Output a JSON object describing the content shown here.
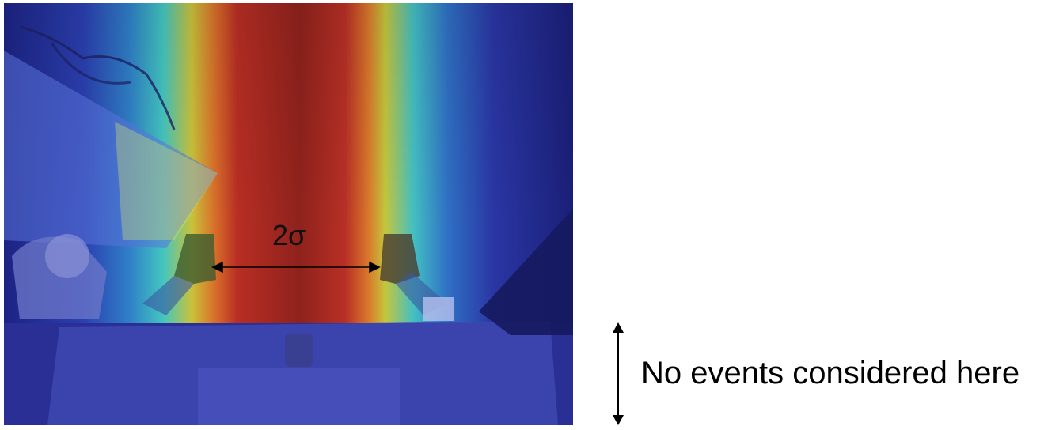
{
  "figure": {
    "sigma_label": "2σ",
    "no_events_label": "No events considered here"
  },
  "colors": {
    "heatmap_peak": "#8b1a1a",
    "heatmap_low": "#1a1f80",
    "arrow": "#000000"
  }
}
